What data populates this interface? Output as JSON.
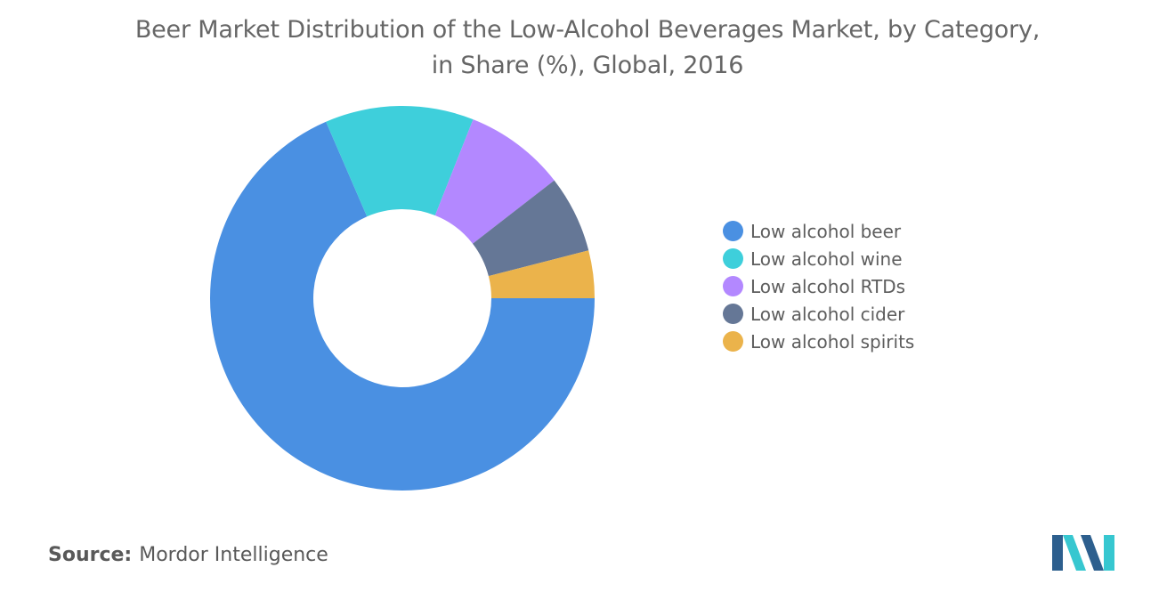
{
  "title_line1": "Beer Market Distribution of the Low-Alcohol Beverages Market, by Category,",
  "title_line2": "in Share (%), Global, 2016",
  "source": {
    "label": "Source:",
    "text": "Mordor Intelligence"
  },
  "colors": {
    "beer": "#4a90e2",
    "wine": "#3ecfdb",
    "rtds": "#b388ff",
    "cider": "#657796",
    "spirits": "#ebb34b",
    "logo_dark": "#2d5f8e",
    "logo_light": "#37c7d0"
  },
  "chart_data": {
    "type": "pie",
    "style": "donut",
    "title": "Beer Market Distribution of the Low-Alcohol Beverages Market, by Category, in Share (%), Global, 2016",
    "series": [
      {
        "name": "Share (%)",
        "labels": [
          "Low alcohol beer",
          "Low alcohol wine",
          "Low alcohol RTDs",
          "Low alcohol cider",
          "Low alcohol spirits"
        ],
        "values": [
          68.5,
          12.5,
          8.5,
          6.5,
          4.0
        ],
        "color_keys": [
          "beer",
          "wine",
          "rtds",
          "cider",
          "spirits"
        ]
      }
    ],
    "legend_position": "right",
    "start_angle": "3 o'clock",
    "direction": "clockwise"
  }
}
